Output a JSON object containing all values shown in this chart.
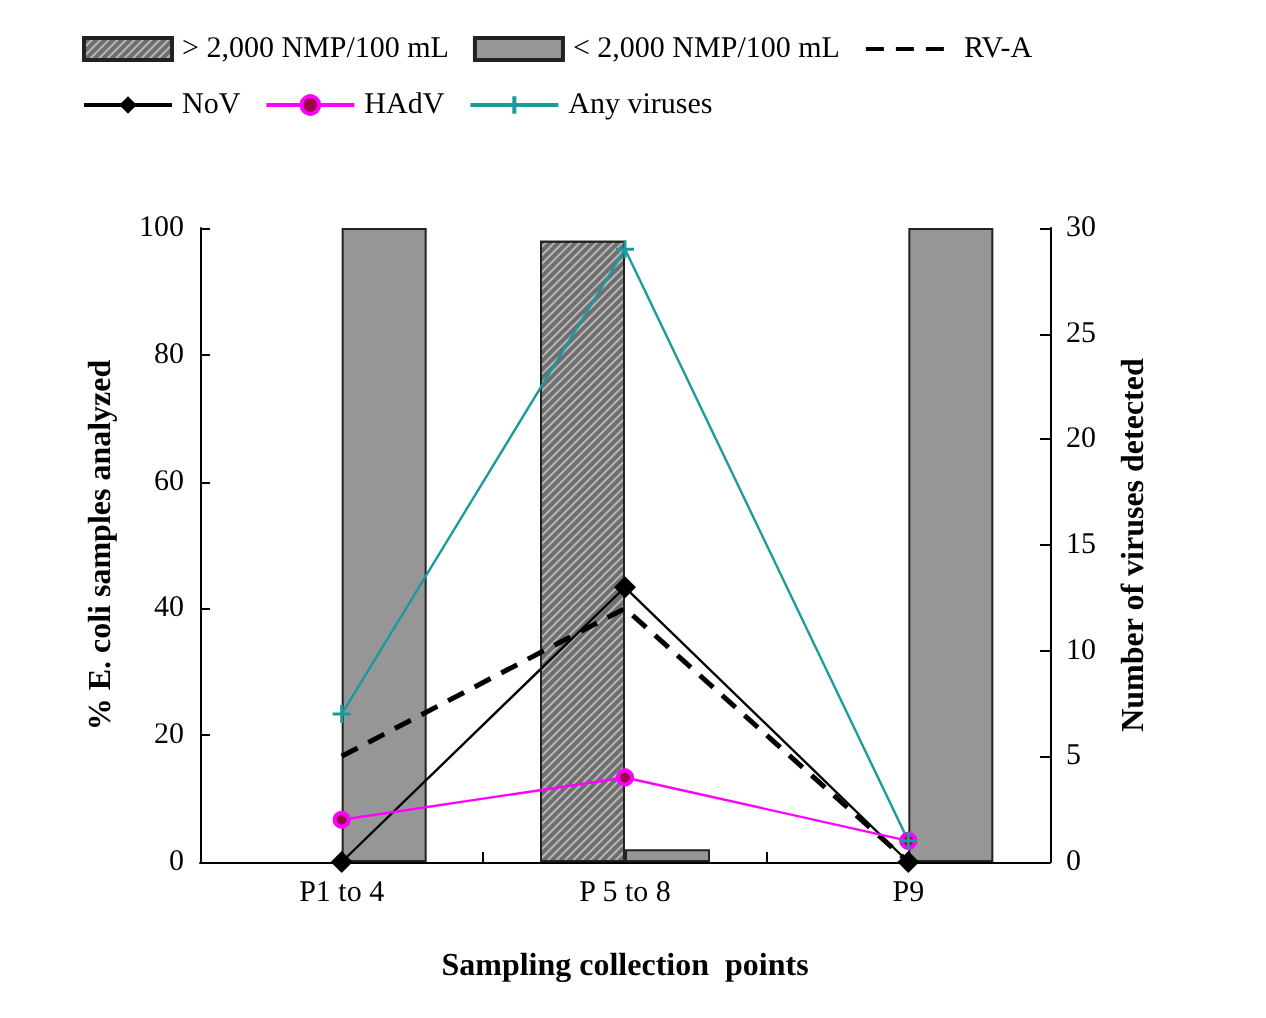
{
  "chart_data": {
    "type": "bar",
    "xlabel": "Sampling collection  points",
    "ylabel": "% E. coli samples analyzed",
    "y2label": "Number of viruses detected",
    "categories": [
      "P1 to 4",
      "P 5 to 8",
      "P9"
    ],
    "series": [
      {
        "name": "> 2,000 NMP/100 mL",
        "color": "#6e6e6e",
        "values": [
          0,
          98,
          0
        ]
      },
      {
        "name": "< 2,000 NMP/100 mL",
        "color": "#969696",
        "values": [
          100,
          2,
          100
        ]
      },
      {
        "name": "RV-A",
        "type": "line",
        "axis": "y2",
        "color": "#000000",
        "line_style": "dashed",
        "marker": "none",
        "values": [
          5,
          12,
          0
        ]
      },
      {
        "name": "NoV",
        "type": "line",
        "axis": "y2",
        "color": "#000000",
        "line_style": "solid",
        "marker": "diamond",
        "values": [
          0,
          13,
          0
        ]
      },
      {
        "name": "HAdV",
        "type": "line",
        "axis": "y2",
        "color": "#ff00ff",
        "line_style": "solid",
        "marker": "circle",
        "values": [
          2,
          4,
          1
        ]
      },
      {
        "name": "Any viruses",
        "type": "line",
        "axis": "y2",
        "color": "#1a9a9a",
        "line_style": "solid",
        "marker": "cross",
        "values": [
          7,
          29,
          1
        ]
      }
    ],
    "ylim": [
      0,
      100
    ],
    "yticks": [
      0,
      20,
      40,
      60,
      80,
      100
    ],
    "y2lim": [
      0,
      30
    ],
    "y2ticks": [
      0,
      5,
      10,
      15,
      20,
      25,
      30
    ],
    "grid": false,
    "legend": "top"
  }
}
